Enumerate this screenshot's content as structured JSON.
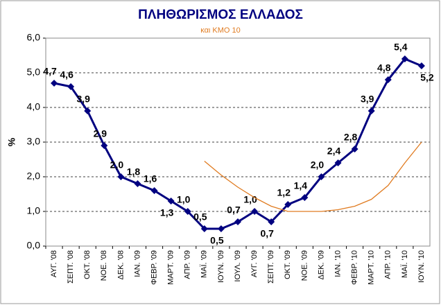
{
  "chart_data": {
    "type": "line",
    "title": "ΠΛΗΘΩΡΙΣΜΟΣ ΕΛΛΑΔΟΣ",
    "subtitle": "και ΚΜΟ 10",
    "y_label": "%",
    "categories": [
      "ΑΥΓ. '08",
      "ΣΕΠΤ. '08",
      "ΟΚΤ. '08",
      "ΝΟΕ. '08",
      "ΔΕΚ. '08",
      "ΙΑΝ. '09",
      "ΦΕΒΡ. '09",
      "ΜΑΡΤ. '09",
      "ΑΠΡ. '09",
      "ΜΑΪ. '09",
      "ΙΟΥΝ. '09",
      "ΙΟΥΛ. '09",
      "ΑΥΓ. '09",
      "ΣΕΠΤ. '09",
      "ΟΚΤ. '09",
      "ΝΟΕ. '09",
      "ΔΕΚ. '09",
      "ΙΑΝ. '10",
      "ΦΕΒΡ. '10",
      "ΜΑΡΤ. '10",
      "ΑΠΡ. '10",
      "ΜΑΪ. '10",
      "ΙΟΥΝ. '10"
    ],
    "series": [
      {
        "color": "#000080",
        "values": [
          4.7,
          4.6,
          3.9,
          2.9,
          2.0,
          1.8,
          1.6,
          1.3,
          1.0,
          0.5,
          0.5,
          0.7,
          1.0,
          0.7,
          1.2,
          1.4,
          2.0,
          2.4,
          2.8,
          3.9,
          4.8,
          5.4,
          5.2
        ],
        "value_labels": [
          "4,7",
          "4,6",
          "3,9",
          "2,9",
          "2,0",
          "1,8",
          "1,6",
          "1,3",
          "1,0",
          "0,5",
          "0,5",
          "0,7",
          "1,0",
          "0,7",
          "1,2",
          "1,4",
          "2,0",
          "2,4",
          "2,8",
          "3,9",
          "4,8",
          "5,4",
          "5,2"
        ]
      },
      {
        "color": "#e07b20",
        "values": [
          null,
          null,
          null,
          null,
          null,
          null,
          null,
          null,
          null,
          2.45,
          2.05,
          1.7,
          1.4,
          1.15,
          1.0,
          1.0,
          1.0,
          1.05,
          1.15,
          1.35,
          1.75,
          2.4,
          3.0
        ]
      }
    ],
    "ylim": [
      0,
      6
    ],
    "yticks": [
      {
        "value": 0,
        "label": "0,0"
      },
      {
        "value": 1,
        "label": "1,0"
      },
      {
        "value": 2,
        "label": "2,0"
      },
      {
        "value": 3,
        "label": "3,0"
      },
      {
        "value": 4,
        "label": "4,0"
      },
      {
        "value": 5,
        "label": "5,0"
      },
      {
        "value": 6,
        "label": "6,0"
      }
    ],
    "grid": true
  }
}
